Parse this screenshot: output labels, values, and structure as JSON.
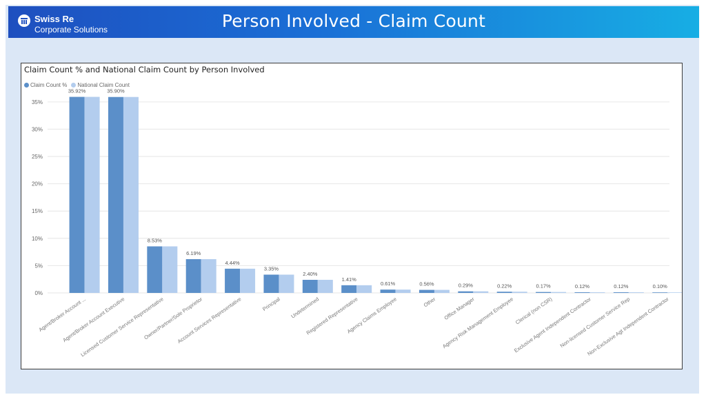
{
  "header": {
    "brand_name": "Swiss Re",
    "brand_sub": "Corporate Solutions",
    "title": "Person Involved - Claim Count"
  },
  "chart_data": {
    "type": "bar",
    "title": "Claim Count % and National Claim Count by Person Involved",
    "xlabel": "",
    "ylabel": "",
    "ylim": [
      0,
      37
    ],
    "yticks": [
      0,
      5,
      10,
      15,
      20,
      25,
      30,
      35
    ],
    "grid": true,
    "legend_position": "top-left",
    "categories": [
      "Agent/Broker Account ...",
      "Agent/Broker Account Executive",
      "Licensed Customer Service Representative",
      "Owner/Partner/Sole Proprietor",
      "Account Services Representative",
      "Principal",
      "Undetermined",
      "Registered Representative",
      "Agency Claims Employee",
      "Other",
      "Office Manager",
      "Agency Risk Management Employee",
      "Clerical (non CSR)",
      "Exclusive Agent Independent Contractor",
      "Non-licensed Customer Service Rep",
      "Non-Exclusive Agt Independent Contractor"
    ],
    "series": [
      {
        "name": "Claim Count %",
        "color": "#5b8fc9",
        "values": [
          35.92,
          35.9,
          8.53,
          6.19,
          4.44,
          3.35,
          2.4,
          1.41,
          0.61,
          0.56,
          0.29,
          0.22,
          0.17,
          0.12,
          0.12,
          0.1
        ],
        "labels": [
          "35.92%",
          "35.90%",
          "8.53%",
          "6.19%",
          "4.44%",
          "3.35%",
          "2.40%",
          "1.41%",
          "0.61%",
          "0.56%",
          "0.29%",
          "0.22%",
          "0.17%",
          "0.12%",
          "0.12%",
          "0.10%"
        ]
      },
      {
        "name": "National Claim Count",
        "color": "#b3cdee",
        "values": [
          35.92,
          35.9,
          8.53,
          6.19,
          4.44,
          3.35,
          2.4,
          1.41,
          0.61,
          0.56,
          0.29,
          0.22,
          0.17,
          0.12,
          0.12,
          0.1
        ]
      }
    ]
  }
}
